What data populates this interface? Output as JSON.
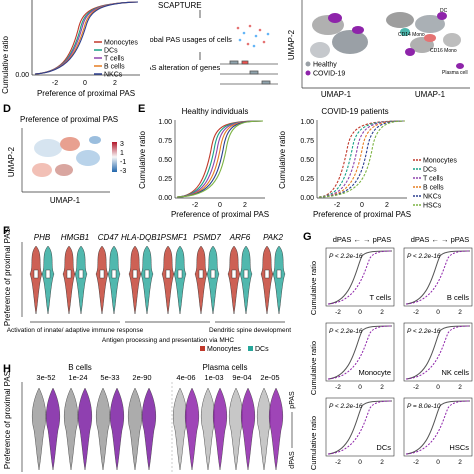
{
  "panelA": {
    "ylabel": "Cumulative ratio",
    "xlabel": "Preference of proximal PAS",
    "ticks_x": [
      "-2",
      "0",
      "2"
    ],
    "ticks_y": [
      "0.00"
    ],
    "legend": [
      {
        "name": "Monocytes",
        "color": "#c0392b"
      },
      {
        "name": "DCs",
        "color": "#16a085"
      },
      {
        "name": "T cells",
        "color": "#8e44ad"
      },
      {
        "name": "B cells",
        "color": "#e67e22"
      },
      {
        "name": "NKCs",
        "color": "#2c3e8f"
      }
    ]
  },
  "panelB": {
    "top": "SCAPTURE",
    "label1": "Global PAS usages of cells",
    "label2": "PAS alteration of genes"
  },
  "panelC": {
    "xlabel": "UMAP-1",
    "ylabel": "UMAP-2",
    "xlabel2": "UMAP-1",
    "legend": [
      {
        "name": "Healthy",
        "color": "#9aa0a6"
      },
      {
        "name": "COVID-19",
        "color": "#8e24aa"
      }
    ],
    "clusters": [
      "CD14 Mono",
      "CD16 Mono",
      "DC",
      "Plasma cell"
    ]
  },
  "panelD": {
    "letter": "D",
    "title": "Preference of proximal PAS",
    "xlabel": "UMAP-1",
    "ylabel": "UMAP-2",
    "scale": [
      "3",
      "1",
      "-1",
      "-3"
    ]
  },
  "panelE": {
    "letter": "E",
    "title_left": "Healthy individuals",
    "title_right": "COVID-19 patients",
    "ylabel": "Cumulative ratio",
    "xlabel": "Preference of proximal PAS",
    "ticks_y": [
      "1.00",
      "0.75",
      "0.50",
      "0.25",
      "0.00"
    ],
    "ticks_x": [
      "-2",
      "0",
      "2"
    ],
    "legend": [
      {
        "name": "Monocytes",
        "color": "#c0392b"
      },
      {
        "name": "DCs",
        "color": "#16a085"
      },
      {
        "name": "T cells",
        "color": "#8e44ad"
      },
      {
        "name": "B cells",
        "color": "#e67e22"
      },
      {
        "name": "NKCs",
        "color": "#2c3e8f"
      },
      {
        "name": "HSCs",
        "color": "#7cb342"
      }
    ]
  },
  "panelF": {
    "letter": "F",
    "ylabel": "Preference of proximal PAS",
    "genes": [
      "PHB",
      "HMGB1",
      "CD47",
      "HLA-DQB1",
      "PSMF1",
      "PSMD7",
      "ARF6",
      "PAK2"
    ],
    "groups": [
      "Activation of innate/ adaptive immune response",
      "Antigen processing and presentation via MHC",
      "Dendritic spine development"
    ],
    "legend": [
      {
        "name": "Monocytes",
        "color": "#c0392b"
      },
      {
        "name": "DCs",
        "color": "#26a69a"
      }
    ]
  },
  "panelG": {
    "letter": "G",
    "header_left": "dPAS ← → pPAS",
    "header_right": "dPAS ← → pPAS",
    "ylabel": "Cumulative ratio",
    "ticks_x": [
      "-2",
      "0",
      "2"
    ],
    "cells": [
      {
        "name": "T cells",
        "p": "P < 2.2e-16"
      },
      {
        "name": "B cells",
        "p": "P < 2.2e-16"
      },
      {
        "name": "Monocyte",
        "p": "P < 2.2e-16"
      },
      {
        "name": "NK cells",
        "p": "P < 2.2e-16"
      },
      {
        "name": "DCs",
        "p": "P < 2.2e-16"
      },
      {
        "name": "HSCs",
        "p": "P = 8.0e-10"
      }
    ]
  },
  "panelH": {
    "letter": "H",
    "title_left": "B cells",
    "title_right": "Plasma cells",
    "ylabel": "Preference of proximal PAS",
    "pvals_left": [
      "3e-52",
      "1e-24",
      "5e-33",
      "2e-90"
    ],
    "pvals_right": [
      "4e-06",
      "1e-03",
      "9e-04",
      "2e-05"
    ],
    "axis_top": "pPAS",
    "axis_bottom": "dPAS"
  }
}
